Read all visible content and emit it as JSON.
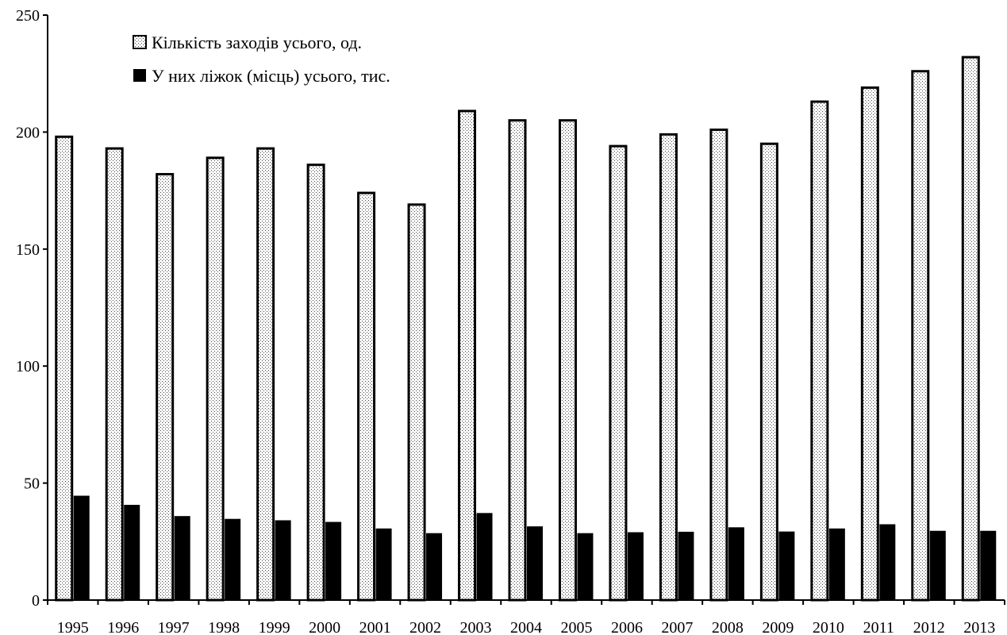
{
  "chart_data": {
    "type": "bar",
    "categories": [
      "1995",
      "1996",
      "1997",
      "1998",
      "1999",
      "2000",
      "2001",
      "2002",
      "2003",
      "2004",
      "2005",
      "2006",
      "2007",
      "2008",
      "2009",
      "2010",
      "2011",
      "2012",
      "2013"
    ],
    "series": [
      {
        "name": "Кількість заходів усього, од.",
        "values": [
          198,
          193,
          182,
          189,
          193,
          186,
          174,
          169,
          209,
          205,
          205,
          194,
          199,
          201,
          195,
          213,
          219,
          226,
          232
        ],
        "pattern": "dotted",
        "color": "#000000"
      },
      {
        "name": "У них ліжок (місць) усього, тис.",
        "values": [
          44.6,
          40.7,
          35.9,
          34.7,
          34.1,
          33.4,
          30.6,
          28.6,
          37.2,
          31.5,
          28.6,
          29.0,
          29.2,
          31.1,
          29.3,
          30.6,
          32.4,
          29.6,
          29.6
        ],
        "pattern": "solid",
        "color": "#000000"
      }
    ],
    "title": "",
    "xlabel": "",
    "ylabel": "",
    "ylim": [
      0,
      250
    ],
    "yticks": [
      "0",
      "50",
      "100",
      "150",
      "200",
      "250"
    ],
    "grid": false,
    "legend_position": "top-left"
  }
}
